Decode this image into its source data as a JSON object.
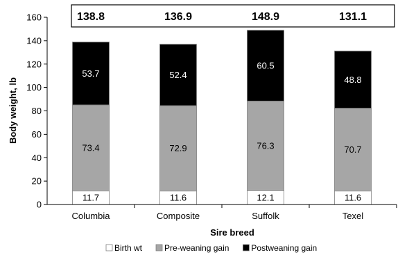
{
  "chart_data": {
    "type": "bar",
    "stacked": true,
    "categories": [
      "Columbia",
      "Composite",
      "Suffolk",
      "Texel"
    ],
    "series": [
      {
        "name": "Birth wt",
        "values": [
          11.7,
          11.6,
          12.1,
          11.6
        ],
        "color": "#ffffff",
        "label_color": "#000000"
      },
      {
        "name": "Pre-weaning gain",
        "values": [
          73.4,
          72.9,
          76.3,
          70.7
        ],
        "color": "#a6a6a6",
        "label_color": "#000000"
      },
      {
        "name": "Postweaning gain",
        "values": [
          53.7,
          52.4,
          60.5,
          48.8
        ],
        "color": "#000000",
        "label_color": "#ffffff"
      }
    ],
    "totals": [
      "138.8",
      "136.9",
      "148.9",
      "131.1"
    ],
    "xlabel": "Sire breed",
    "ylabel": "Body weight, lb",
    "ylim": [
      0,
      160
    ],
    "yticks": [
      0,
      20,
      40,
      60,
      80,
      100,
      120,
      140,
      160
    ],
    "grid": false,
    "legend_position": "bottom"
  }
}
